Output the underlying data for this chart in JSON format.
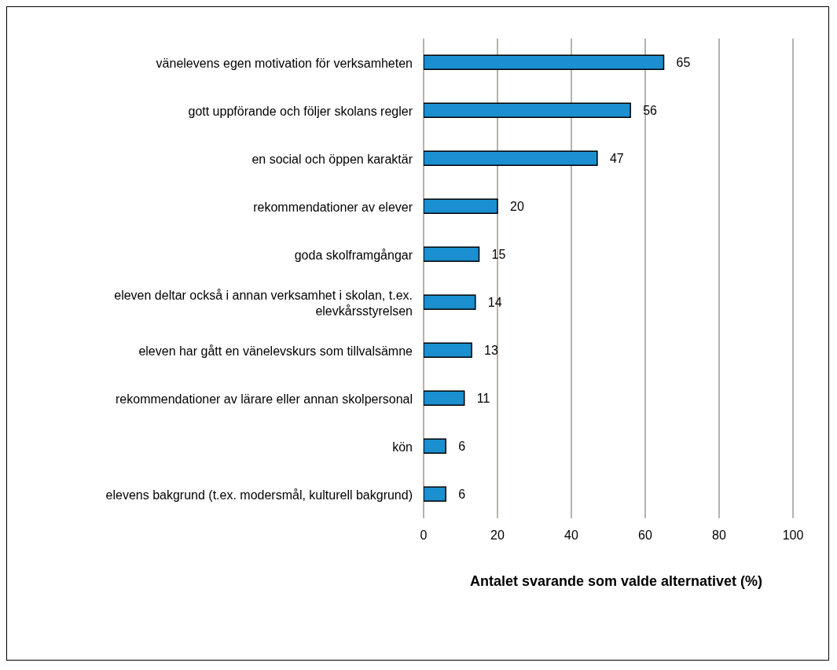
{
  "chart_data": {
    "type": "bar",
    "orientation": "horizontal",
    "xlabel": "Antalet svarande som valde alternativet (%)",
    "categories": [
      "vänelevens egen motivation för verksamheten",
      "gott uppförande och följer skolans regler",
      "en social och öppen karaktär",
      "rekommendationer av elever",
      "goda skolframgångar",
      "eleven deltar också i annan verksamhet i skolan, t.ex. elevkårsstyrelsen",
      "eleven har gått en vänelevskurs som tillvalsämne",
      "rekommendationer av lärare eller annan skolpersonal",
      "kön",
      "elevens bakgrund (t.ex. modersmål, kulturell bakgrund)"
    ],
    "values": [
      65,
      56,
      47,
      20,
      15,
      14,
      13,
      11,
      6,
      6
    ],
    "color": "#1b8fcf",
    "xlim": [
      0,
      100
    ],
    "xticks": [
      0,
      20,
      40,
      60,
      80,
      100
    ],
    "grid": "x",
    "data_labels": true
  }
}
